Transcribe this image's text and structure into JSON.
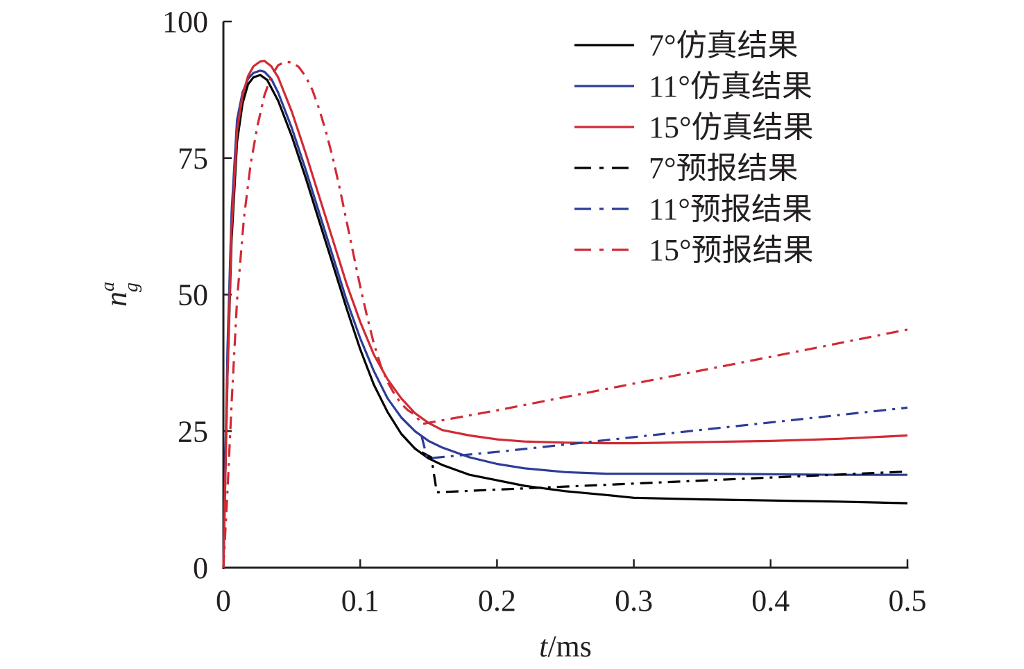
{
  "chart_data": {
    "type": "line",
    "title": "",
    "xlabel_italic": "t",
    "xlabel_unit": "/ms",
    "ylabel_main": "n",
    "ylabel_sup": "a",
    "ylabel_sub": "g",
    "xlim": [
      0,
      0.5
    ],
    "ylim": [
      0,
      100
    ],
    "xticks": [
      0,
      0.1,
      0.2,
      0.3,
      0.4,
      0.5
    ],
    "xtick_labels": [
      "0",
      "0.1",
      "0.2",
      "0.3",
      "0.4",
      "0.5"
    ],
    "yticks": [
      0,
      25,
      50,
      75,
      100
    ],
    "ytick_labels": [
      "0",
      "25",
      "50",
      "75",
      "100"
    ],
    "grid": false,
    "legend_position": "top-right",
    "series": [
      {
        "name": "7°仿真结果",
        "color": "#000000",
        "style": "solid",
        "x": [
          0,
          0.003,
          0.006,
          0.01,
          0.014,
          0.018,
          0.022,
          0.027,
          0.032,
          0.04,
          0.05,
          0.06,
          0.07,
          0.08,
          0.09,
          0.1,
          0.11,
          0.12,
          0.13,
          0.14,
          0.15,
          0.16,
          0.18,
          0.2,
          0.22,
          0.25,
          0.28,
          0.3,
          0.35,
          0.4,
          0.45,
          0.5
        ],
        "y": [
          0,
          35,
          60,
          78,
          85,
          88.5,
          89.8,
          90.2,
          89.3,
          85.5,
          79,
          71.5,
          63.5,
          55.5,
          47.5,
          40,
          33.5,
          28.5,
          24.5,
          21.8,
          20,
          18.8,
          17,
          16,
          15,
          14,
          13.3,
          12.8,
          12.5,
          12.3,
          12.1,
          11.8
        ]
      },
      {
        "name": "11°仿真结果",
        "color": "#2e3d96",
        "style": "solid",
        "x": [
          0,
          0.003,
          0.006,
          0.01,
          0.014,
          0.018,
          0.022,
          0.027,
          0.03,
          0.035,
          0.04,
          0.05,
          0.06,
          0.07,
          0.08,
          0.09,
          0.1,
          0.11,
          0.12,
          0.13,
          0.14,
          0.15,
          0.16,
          0.18,
          0.2,
          0.22,
          0.25,
          0.28,
          0.3,
          0.35,
          0.4,
          0.45,
          0.5
        ],
        "y": [
          0,
          40,
          65,
          82,
          87,
          89.5,
          90.6,
          91,
          90.8,
          89.5,
          87,
          80.5,
          73,
          65,
          57,
          49,
          42,
          36,
          31,
          27.5,
          25,
          23.2,
          22,
          20.2,
          19,
          18.2,
          17.5,
          17.2,
          17.2,
          17.2,
          17.1,
          17,
          17
        ]
      },
      {
        "name": "15°仿真结果",
        "color": "#d12a34",
        "style": "solid",
        "x": [
          0,
          0.003,
          0.006,
          0.01,
          0.014,
          0.018,
          0.022,
          0.027,
          0.03,
          0.035,
          0.04,
          0.05,
          0.06,
          0.07,
          0.08,
          0.09,
          0.1,
          0.11,
          0.12,
          0.13,
          0.14,
          0.15,
          0.16,
          0.18,
          0.2,
          0.22,
          0.25,
          0.28,
          0.3,
          0.35,
          0.4,
          0.45,
          0.5
        ],
        "y": [
          0,
          35,
          62,
          80,
          86.5,
          90,
          91.8,
          92.7,
          92.8,
          91.8,
          89.8,
          83.5,
          76,
          68,
          60,
          52,
          45,
          39,
          34.5,
          31,
          28.3,
          26.5,
          25.2,
          24.2,
          23.5,
          23.1,
          22.9,
          22.8,
          22.8,
          23,
          23.2,
          23.6,
          24.2
        ]
      },
      {
        "name": "7°预报结果",
        "color": "#000000",
        "style": "dashdot",
        "x": [
          0.13,
          0.14,
          0.152,
          0.156,
          0.2,
          0.3,
          0.4,
          0.5
        ],
        "y": [
          24.5,
          21.8,
          20.2,
          13.8,
          14.3,
          15.4,
          16.5,
          17.6
        ]
      },
      {
        "name": "11°预报结果",
        "color": "#2e3d96",
        "style": "dashdot",
        "x": [
          0.13,
          0.14,
          0.145,
          0.149,
          0.2,
          0.3,
          0.4,
          0.5
        ],
        "y": [
          27.5,
          25,
          24,
          20,
          21.2,
          23.9,
          26.6,
          29.3
        ]
      },
      {
        "name": "15°预报结果",
        "color": "#d12a34",
        "style": "dashdot",
        "x": [
          0,
          0.003,
          0.006,
          0.01,
          0.015,
          0.02,
          0.025,
          0.03,
          0.035,
          0.04,
          0.045,
          0.05,
          0.055,
          0.06,
          0.065,
          0.07,
          0.075,
          0.08,
          0.085,
          0.09,
          0.095,
          0.1,
          0.105,
          0.11,
          0.115,
          0.12,
          0.125,
          0.13,
          0.135,
          0.14,
          0.143,
          0.145,
          0.2,
          0.3,
          0.4,
          0.5
        ],
        "y": [
          0,
          14,
          30,
          49,
          64,
          74,
          81,
          86.5,
          90,
          92,
          92.6,
          92.5,
          91.7,
          90,
          87.5,
          84,
          79.8,
          75,
          69.5,
          63.5,
          57.5,
          51.5,
          46,
          41,
          37,
          34,
          31.8,
          30,
          28.8,
          28,
          27,
          26.3,
          28.8,
          33.7,
          38.6,
          43.6
        ]
      }
    ]
  }
}
